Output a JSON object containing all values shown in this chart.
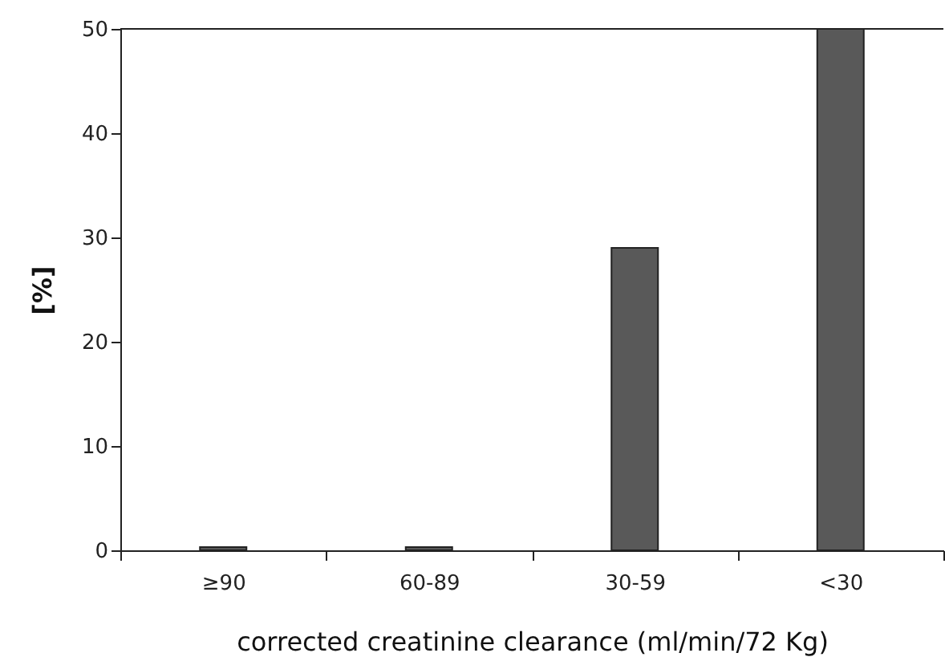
{
  "chart_data": {
    "type": "bar",
    "xlabel": "corrected creatinine clearance (ml/min/72 Kg)",
    "ylabel": "[%]",
    "categories": [
      "≥90",
      "60-89",
      "30-59",
      "<30"
    ],
    "values": [
      0.3,
      0.3,
      29,
      50
    ],
    "color": "#595959",
    "ylim": [
      0,
      50
    ],
    "yticks": [
      0,
      10,
      20,
      30,
      40,
      50
    ],
    "grid": false
  }
}
